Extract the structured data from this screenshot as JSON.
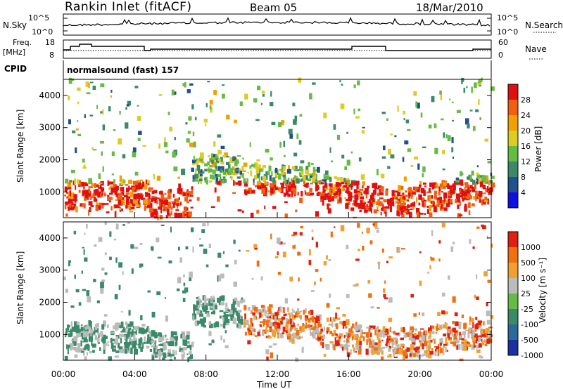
{
  "header": {
    "site": "Rankin Inlet (fitACF)",
    "beam": "Beam 05",
    "date": "18/Mar/2010"
  },
  "noise_panel": {
    "left_label": "N.Sky",
    "right_label": "N.Search",
    "left_ticks": [
      "10^5",
      "10^0"
    ],
    "right_ticks": [
      "10^5",
      "10^0"
    ]
  },
  "freq_panel": {
    "left_label_1": "Freq.",
    "left_label_2": "[MHz]",
    "right_label": "Nave",
    "left_ticks": [
      "18",
      "8"
    ],
    "right_ticks": [
      "60",
      "0"
    ]
  },
  "cpid": {
    "label": "CPID",
    "value": "normalsound (fast) 157"
  },
  "chart_data": [
    {
      "type": "heatmap",
      "name": "power",
      "ylabel": "Slant Range [km]",
      "y_ticks": [
        "1000",
        "2000",
        "3000",
        "4000"
      ],
      "ylim": [
        200,
        4500
      ],
      "colorbar_label": "Power [dB]",
      "colorbar_ticks": [
        "4",
        "8",
        "12",
        "16",
        "20",
        "24",
        "28"
      ],
      "colors": [
        "#1010e0",
        "#205090",
        "#3a8a6a",
        "#66bb44",
        "#ddcc22",
        "#f0a000",
        "#f06010",
        "#e01010"
      ]
    },
    {
      "type": "heatmap",
      "name": "velocity",
      "ylabel": "Slant Range [km]",
      "y_ticks": [
        "1000",
        "2000",
        "3000",
        "4000"
      ],
      "ylim": [
        200,
        4500
      ],
      "colorbar_label": "Velocity [m s⁻¹]",
      "colorbar_ticks": [
        "1000",
        "500",
        "100",
        "25",
        "-25",
        "-100",
        "-500",
        "-1000"
      ],
      "colors": [
        "#1830a0",
        "#2a6a9a",
        "#3a8a6a",
        "#66bb44",
        "#bbbbbb",
        "#f0a030",
        "#f07010",
        "#e02010"
      ]
    }
  ],
  "x_axis": {
    "label": "Time UT",
    "ticks": [
      "00:00",
      "04:00",
      "08:00",
      "12:00",
      "16:00",
      "20:00",
      "00:00"
    ]
  }
}
